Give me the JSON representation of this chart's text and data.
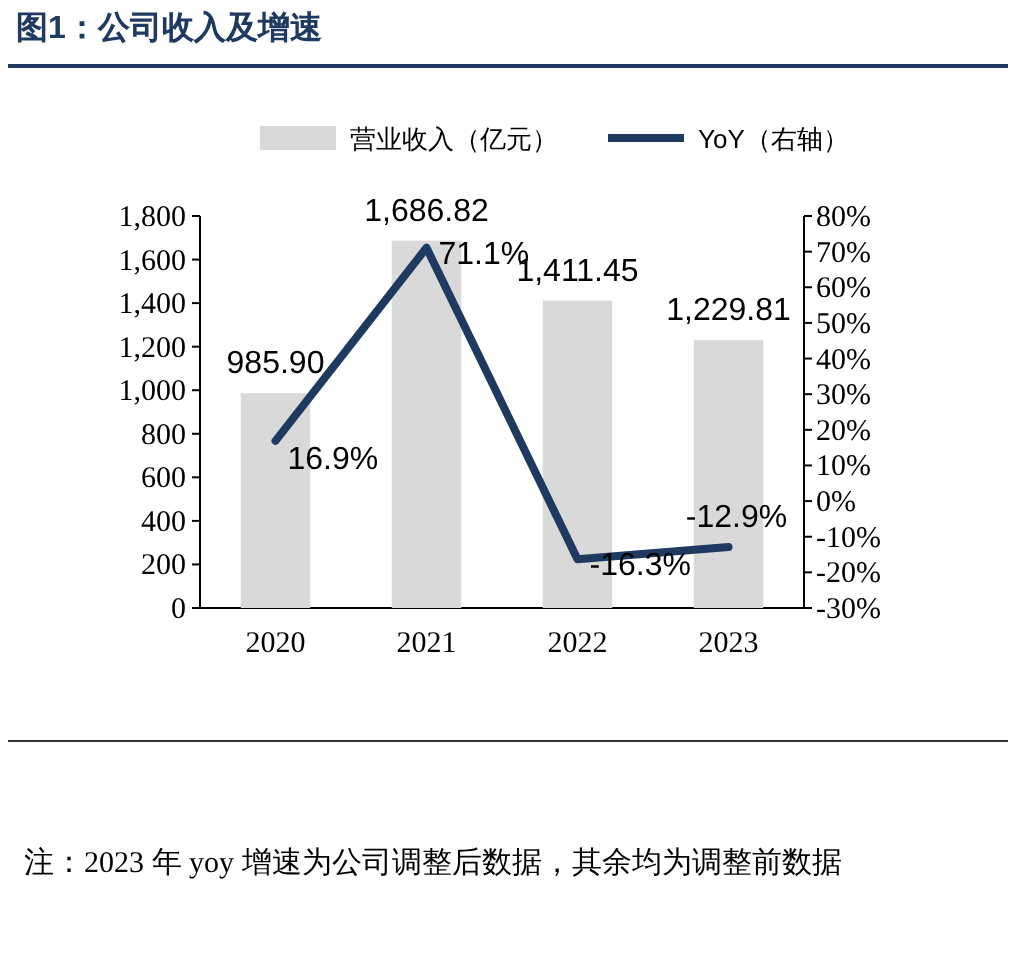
{
  "chart_data": {
    "type": "bar",
    "title": "图1：公司收入及增速",
    "categories": [
      "2020",
      "2021",
      "2022",
      "2023"
    ],
    "series": [
      {
        "name": "营业收入（亿元）",
        "color": "#d9d9d9",
        "values": [
          985.9,
          1686.82,
          1411.45,
          1229.81
        ],
        "value_labels": [
          "985.90",
          "1,686.82",
          "1,411.45",
          "1,229.81"
        ]
      },
      {
        "name": "YoY（右轴）",
        "type": "line",
        "axis": "y2",
        "color": "#1f3a60",
        "values": [
          16.9,
          71.1,
          -16.3,
          -12.9
        ],
        "value_labels": [
          "16.9%",
          "71.1%",
          "-16.3%",
          "-12.9%"
        ]
      }
    ],
    "ylim": [
      0,
      1800
    ],
    "yticks": [
      0,
      200,
      400,
      600,
      800,
      {
        "value": 1000,
        "label": "1,000"
      },
      {
        "value": 1200,
        "label": "1,200"
      },
      {
        "value": 1400,
        "label": "1,400"
      },
      {
        "value": 1600,
        "label": "1,600"
      },
      {
        "value": 1800,
        "label": "1,800"
      }
    ],
    "y2lim": [
      -30,
      80
    ],
    "y2ticks": [
      {
        "value": -30,
        "label": "-30%"
      },
      {
        "value": -20,
        "label": "-20%"
      },
      {
        "value": -10,
        "label": "-10%"
      },
      {
        "value": 0,
        "label": "0%"
      },
      {
        "value": 10,
        "label": "10%"
      },
      {
        "value": 20,
        "label": "20%"
      },
      {
        "value": 30,
        "label": "30%"
      },
      {
        "value": 40,
        "label": "40%"
      },
      {
        "value": 50,
        "label": "50%"
      },
      {
        "value": 60,
        "label": "60%"
      },
      {
        "value": 70,
        "label": "70%"
      },
      {
        "value": 80,
        "label": "80%"
      }
    ],
    "legend": "top",
    "grid": false,
    "annotations": [
      "注：2023 年 yoy 增速为公司调整后数据，其余均为调整前数据"
    ]
  }
}
